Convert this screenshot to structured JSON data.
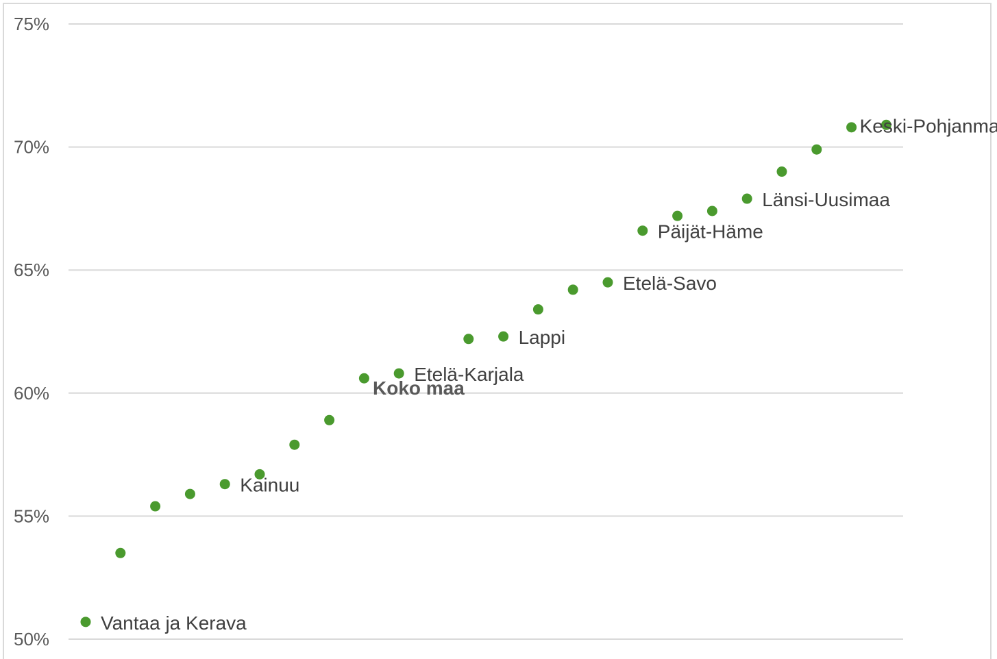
{
  "chart_data": {
    "type": "scatter",
    "title": "",
    "xlabel": "",
    "ylabel": "",
    "ylim": [
      50,
      75
    ],
    "ytick_values": [
      50,
      55,
      60,
      65,
      70,
      75
    ],
    "ytick_labels": [
      "50%",
      "55%",
      "60%",
      "65%",
      "70%",
      "75%"
    ],
    "grid": true,
    "legend": "none",
    "colors": {
      "point": "#4a9a2e",
      "grid": "#d9d9d9",
      "tick_text": "#595959",
      "label_text": "#404040"
    },
    "points": [
      {
        "x": 1,
        "y": 50.7,
        "label": "Vantaa ja Kerava",
        "bold": false
      },
      {
        "x": 2,
        "y": 53.5,
        "label": "",
        "bold": false
      },
      {
        "x": 3,
        "y": 55.4,
        "label": "",
        "bold": false
      },
      {
        "x": 4,
        "y": 55.9,
        "label": "",
        "bold": false
      },
      {
        "x": 5,
        "y": 56.3,
        "label": "Kainuu",
        "bold": false
      },
      {
        "x": 6,
        "y": 56.7,
        "label": "",
        "bold": false
      },
      {
        "x": 7,
        "y": 57.9,
        "label": "",
        "bold": false
      },
      {
        "x": 8,
        "y": 58.9,
        "label": "",
        "bold": false
      },
      {
        "x": 9,
        "y": 60.6,
        "label": "",
        "bold": false
      },
      {
        "x": 10,
        "y": 60.8,
        "label": "Etelä-Karjala",
        "bold": false
      },
      {
        "x": 12,
        "y": 62.2,
        "label": "",
        "bold": false
      },
      {
        "x": 13,
        "y": 62.3,
        "label": "Lappi",
        "bold": false
      },
      {
        "x": 14,
        "y": 63.4,
        "label": "",
        "bold": false
      },
      {
        "x": 15,
        "y": 64.2,
        "label": "",
        "bold": false
      },
      {
        "x": 16,
        "y": 64.5,
        "label": "Etelä-Savo",
        "bold": false
      },
      {
        "x": 17,
        "y": 66.6,
        "label": "Päijät-Häme",
        "bold": false
      },
      {
        "x": 18,
        "y": 67.2,
        "label": "",
        "bold": false
      },
      {
        "x": 19,
        "y": 67.4,
        "label": "",
        "bold": false
      },
      {
        "x": 20,
        "y": 67.9,
        "label": "Länsi-Uusimaa",
        "bold": false
      },
      {
        "x": 21,
        "y": 69.0,
        "label": "",
        "bold": false
      },
      {
        "x": 22,
        "y": 69.9,
        "label": "",
        "bold": false
      },
      {
        "x": 23,
        "y": 70.8,
        "label": "",
        "bold": false
      },
      {
        "x": 24,
        "y": 70.9,
        "label": "Keski-Pohjanmaa",
        "bold": false
      }
    ],
    "annotations": [
      {
        "text": "Koko maa",
        "bold": true,
        "x": 11,
        "y": 60.5
      }
    ],
    "xlim": [
      0.5,
      24.5
    ]
  }
}
